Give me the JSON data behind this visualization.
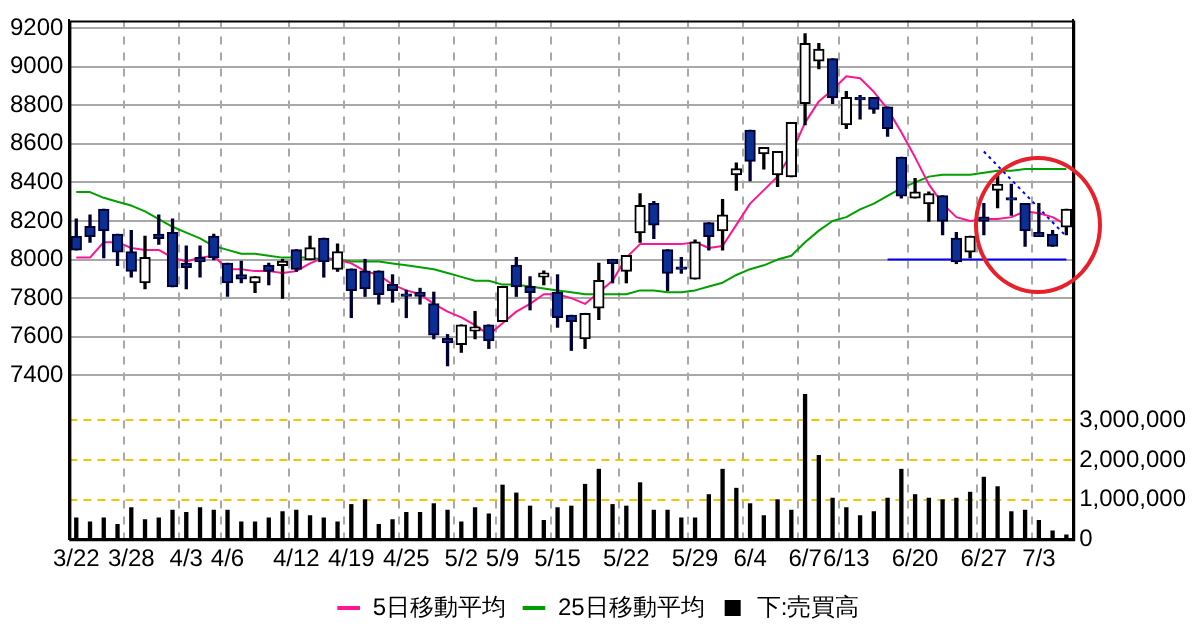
{
  "chart_data": {
    "type": "candlestick",
    "categories": [
      "3/22",
      null,
      null,
      null,
      "3/28",
      null,
      null,
      null,
      "4/3",
      null,
      null,
      "4/6",
      null,
      null,
      null,
      null,
      "4/12",
      null,
      null,
      null,
      "4/19",
      null,
      null,
      null,
      "4/25",
      null,
      null,
      null,
      "5/2",
      null,
      null,
      "5/9",
      null,
      null,
      null,
      "5/15",
      null,
      null,
      null,
      null,
      "5/22",
      null,
      null,
      null,
      null,
      "5/29",
      null,
      null,
      null,
      "6/4",
      null,
      null,
      null,
      "6/7",
      null,
      null,
      "6/13",
      null,
      null,
      null,
      null,
      "6/20",
      null,
      null,
      null,
      null,
      "6/27",
      null,
      null,
      null,
      "7/3",
      null,
      null
    ],
    "ohlc": [
      [
        8120,
        8210,
        8050,
        8050
      ],
      [
        8170,
        8230,
        8090,
        8120
      ],
      [
        8260,
        8260,
        8010,
        8150
      ],
      [
        8130,
        8130,
        7970,
        8040
      ],
      [
        8040,
        8150,
        7910,
        7940
      ],
      [
        7880,
        8120,
        7850,
        8010
      ],
      [
        8130,
        8230,
        8080,
        8110
      ],
      [
        8140,
        8210,
        7860,
        7860
      ],
      [
        7980,
        8070,
        7850,
        7960
      ],
      [
        8010,
        8070,
        7910,
        7990
      ],
      [
        8120,
        8130,
        8000,
        8010
      ],
      [
        7980,
        7980,
        7810,
        7880
      ],
      [
        7920,
        7990,
        7880,
        7900
      ],
      [
        7880,
        7910,
        7830,
        7910
      ],
      [
        7970,
        7980,
        7870,
        7940
      ],
      [
        7970,
        8000,
        7800,
        7990
      ],
      [
        8050,
        8050,
        7940,
        7950
      ],
      [
        8000,
        8120,
        8000,
        8060
      ],
      [
        8110,
        8110,
        7910,
        7990
      ],
      [
        7950,
        8080,
        7940,
        8040
      ],
      [
        7950,
        7950,
        7700,
        7840
      ],
      [
        7940,
        8000,
        7810,
        7850
      ],
      [
        7940,
        7940,
        7770,
        7820
      ],
      [
        7870,
        7920,
        7780,
        7840
      ],
      [
        7820,
        7840,
        7700,
        7810
      ],
      [
        7830,
        7850,
        7770,
        7810
      ],
      [
        7770,
        7830,
        7590,
        7610
      ],
      [
        7590,
        7610,
        7450,
        7570
      ],
      [
        7560,
        7660,
        7520,
        7660
      ],
      [
        7630,
        7730,
        7590,
        7650
      ],
      [
        7660,
        7660,
        7540,
        7580
      ],
      [
        7680,
        7860,
        7680,
        7860
      ],
      [
        7970,
        8010,
        7810,
        7860
      ],
      [
        7860,
        7910,
        7740,
        7830
      ],
      [
        7910,
        7940,
        7870,
        7930
      ],
      [
        7830,
        7920,
        7650,
        7700
      ],
      [
        7710,
        7710,
        7530,
        7680
      ],
      [
        7590,
        7720,
        7540,
        7720
      ],
      [
        7750,
        7980,
        7690,
        7890
      ],
      [
        8000,
        8000,
        7880,
        7980
      ],
      [
        7940,
        8020,
        7880,
        8020
      ],
      [
        8140,
        8340,
        8090,
        8280
      ],
      [
        8290,
        8300,
        8110,
        8180
      ],
      [
        8050,
        8050,
        7840,
        7930
      ],
      [
        7960,
        8010,
        7930,
        7950
      ],
      [
        7900,
        8100,
        7900,
        8090
      ],
      [
        8190,
        8190,
        8050,
        8120
      ],
      [
        8150,
        8310,
        8050,
        8230
      ],
      [
        8440,
        8500,
        8360,
        8470
      ],
      [
        8670,
        8670,
        8410,
        8510
      ],
      [
        8550,
        8580,
        8470,
        8580
      ],
      [
        8440,
        8560,
        8380,
        8560
      ],
      [
        8430,
        8710,
        8430,
        8710
      ],
      [
        8810,
        9170,
        8700,
        9120
      ],
      [
        9030,
        9120,
        8990,
        9090
      ],
      [
        9040,
        9040,
        8810,
        8840
      ],
      [
        8700,
        8870,
        8680,
        8840
      ],
      [
        8840,
        8850,
        8730,
        8830
      ],
      [
        8840,
        8840,
        8760,
        8780
      ],
      [
        8790,
        8790,
        8640,
        8680
      ],
      [
        8530,
        8530,
        8320,
        8330
      ],
      [
        8320,
        8420,
        8320,
        8350
      ],
      [
        8290,
        8350,
        8200,
        8340
      ],
      [
        8330,
        8330,
        8130,
        8200
      ],
      [
        8110,
        8140,
        7980,
        7990
      ],
      [
        8040,
        8120,
        8010,
        8120
      ],
      [
        8220,
        8290,
        8130,
        8200
      ],
      [
        8360,
        8440,
        8270,
        8390
      ],
      [
        8320,
        8390,
        8230,
        8310
      ],
      [
        8290,
        8290,
        8070,
        8150
      ],
      [
        8140,
        8290,
        8120,
        8120
      ],
      [
        8130,
        8150,
        8070,
        8070
      ],
      [
        8170,
        8260,
        8130,
        8260
      ]
    ],
    "series": [
      {
        "name": "5日移動平均",
        "type": "line",
        "color": "#ff1493",
        "values": [
          8010,
          8010,
          8090,
          8090,
          8060,
          8050,
          8050,
          8010,
          7990,
          8010,
          8020,
          7950,
          7950,
          7940,
          7940,
          7930,
          7940,
          7980,
          8010,
          8000,
          7980,
          7940,
          7920,
          7870,
          7840,
          7820,
          7770,
          7730,
          7700,
          7660,
          7610,
          7670,
          7730,
          7770,
          7820,
          7820,
          7800,
          7770,
          7830,
          7890,
          8010,
          8080,
          8080,
          8080,
          8080,
          8090,
          8060,
          8070,
          8180,
          8290,
          8360,
          8430,
          8550,
          8710,
          8820,
          8880,
          8950,
          8940,
          8870,
          8780,
          8660,
          8530,
          8390,
          8290,
          8220,
          8200,
          8210,
          8210,
          8220,
          8250,
          8240,
          8220,
          8180
        ]
      },
      {
        "name": "25日移動平均",
        "type": "line",
        "color": "#00a000",
        "values": [
          8350,
          8350,
          8320,
          8300,
          8280,
          8250,
          8210,
          8170,
          8140,
          8110,
          8070,
          8050,
          8030,
          8030,
          8020,
          8010,
          8010,
          8010,
          8000,
          8000,
          7990,
          7990,
          7990,
          7980,
          7970,
          7960,
          7950,
          7930,
          7910,
          7890,
          7890,
          7870,
          7870,
          7860,
          7850,
          7840,
          7830,
          7820,
          7820,
          7820,
          7820,
          7840,
          7840,
          7830,
          7830,
          7840,
          7860,
          7880,
          7920,
          7950,
          7970,
          8000,
          8020,
          8090,
          8150,
          8200,
          8220,
          8260,
          8290,
          8330,
          8370,
          8400,
          8430,
          8440,
          8440,
          8440,
          8450,
          8460,
          8460,
          8470,
          8470,
          8470,
          8470
        ]
      },
      {
        "name": "下:売買高",
        "type": "bar",
        "axis": "y2",
        "color": "#000000",
        "values": [
          530000,
          430000,
          530000,
          370000,
          790000,
          490000,
          530000,
          730000,
          670000,
          790000,
          730000,
          730000,
          430000,
          430000,
          530000,
          690000,
          730000,
          590000,
          530000,
          430000,
          870000,
          990000,
          370000,
          490000,
          670000,
          670000,
          890000,
          730000,
          430000,
          790000,
          630000,
          1360000,
          1160000,
          830000,
          470000,
          790000,
          830000,
          1380000,
          1760000,
          870000,
          830000,
          1420000,
          730000,
          730000,
          530000,
          530000,
          1120000,
          1760000,
          1280000,
          890000,
          590000,
          990000,
          730000,
          3650000,
          2110000,
          1030000,
          790000,
          590000,
          690000,
          1030000,
          1760000,
          1120000,
          1030000,
          990000,
          1030000,
          1180000,
          1560000,
          1320000,
          690000,
          730000,
          470000,
          200000,
          100000
        ]
      },
      {
        "type": "line",
        "color": "#0000ff",
        "line_style": "dotted",
        "values": [
          null,
          null,
          null,
          null,
          null,
          null,
          null,
          null,
          null,
          null,
          null,
          null,
          null,
          null,
          null,
          null,
          null,
          null,
          null,
          null,
          null,
          null,
          null,
          null,
          null,
          null,
          null,
          null,
          null,
          null,
          null,
          null,
          null,
          null,
          null,
          null,
          null,
          null,
          null,
          null,
          null,
          null,
          null,
          null,
          null,
          null,
          null,
          null,
          null,
          null,
          null,
          null,
          null,
          null,
          null,
          null,
          null,
          null,
          null,
          null,
          null,
          null,
          null,
          null,
          null,
          null,
          8560,
          null,
          null,
          null,
          null,
          null,
          8120
        ]
      },
      {
        "type": "line",
        "color": "#0000ff",
        "line_style": "solid",
        "values": [
          null,
          null,
          null,
          null,
          null,
          null,
          null,
          null,
          null,
          null,
          null,
          null,
          null,
          null,
          null,
          null,
          null,
          null,
          null,
          null,
          null,
          null,
          null,
          null,
          null,
          null,
          null,
          null,
          null,
          null,
          null,
          null,
          null,
          null,
          null,
          null,
          null,
          null,
          null,
          null,
          null,
          null,
          null,
          null,
          null,
          null,
          null,
          null,
          null,
          null,
          null,
          null,
          null,
          null,
          null,
          null,
          null,
          null,
          null,
          8000,
          8000,
          8000,
          8000,
          8000,
          8000,
          8000,
          8000,
          8000,
          8000,
          8000,
          8000,
          8000,
          8000
        ]
      }
    ],
    "ylim": [
      6550,
      9240
    ],
    "yticks": [
      7400,
      7600,
      7800,
      8000,
      8200,
      8400,
      8600,
      8800,
      9000,
      9200
    ],
    "y2lim": [
      0,
      13100000
    ],
    "y2ticks": [
      0,
      {
        "value": 1000000,
        "label": "1,000,000"
      },
      {
        "value": 2000000,
        "label": "2,000,000"
      },
      {
        "value": 3000000,
        "label": "3,000,000"
      }
    ],
    "grid": true,
    "legend": "bottom",
    "marker": "none"
  }
}
